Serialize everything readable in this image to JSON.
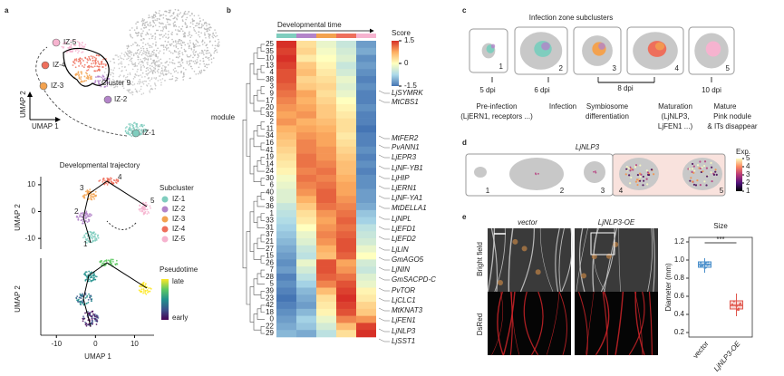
{
  "panels": {
    "a": {
      "label": "a",
      "umap": {
        "cluster_label": "Cluster 9",
        "x_axis": "UMAP 1",
        "y_axis": "UMAP 2",
        "subclusters": [
          {
            "name": "IZ-1",
            "color": "#7fcdbe"
          },
          {
            "name": "IZ-2",
            "color": "#b384c9"
          },
          {
            "name": "IZ-3",
            "color": "#f3a24f"
          },
          {
            "name": "IZ-4",
            "color": "#ee6f5c"
          },
          {
            "name": "IZ-5",
            "color": "#f6b3cf"
          }
        ]
      },
      "trajectory": {
        "title": "Developmental trajectory",
        "ylim": [
          -14,
          13
        ],
        "yticks": [
          10,
          0,
          -10
        ],
        "nodes": [
          "1",
          "2",
          "3",
          "4",
          "5"
        ],
        "legend_title": "Subcluster",
        "y_axis": "UMAP 2"
      },
      "pseudotime": {
        "xlim": [
          -14,
          15
        ],
        "xticks": [
          -10,
          0,
          10
        ],
        "x_axis": "UMAP 1",
        "y_axis": "UMAP 2",
        "legend_title": "Pseudotime",
        "high": "late",
        "low": "early"
      }
    },
    "b": {
      "label": "b",
      "time_label": "Developmental time",
      "score_title": "Score",
      "score_lim": [
        -1.5,
        1.5
      ],
      "score_ticks": [
        1.5,
        0,
        -1.5
      ],
      "module_label": "module",
      "highlight_color": "#e0564c",
      "rows": [
        {
          "module": "25",
          "values": [
            1.5,
            0.3,
            -0.2,
            -0.5,
            -1.2
          ]
        },
        {
          "module": "35",
          "values": [
            1.4,
            0.4,
            -0.1,
            -0.4,
            -1.1
          ]
        },
        {
          "module": "10",
          "values": [
            1.5,
            0.2,
            0.0,
            -0.3,
            -1.3
          ]
        },
        {
          "module": "13",
          "values": [
            1.4,
            0.5,
            0.1,
            -0.5,
            -1.2
          ]
        },
        {
          "module": "4",
          "values": [
            1.3,
            0.6,
            0.2,
            -0.4,
            -1.3
          ]
        },
        {
          "module": "38",
          "values": [
            1.3,
            0.4,
            0.3,
            -0.2,
            -1.4
          ]
        },
        {
          "module": "3",
          "values": [
            1.2,
            0.5,
            0.4,
            -0.3,
            -1.3
          ]
        },
        {
          "module": "9",
          "values": [
            1.1,
            0.8,
            0.3,
            -0.2,
            -1.4
          ]
        },
        {
          "module": "17",
          "values": [
            1.0,
            0.7,
            0.4,
            0.0,
            -1.4
          ]
        },
        {
          "module": "20",
          "values": [
            0.9,
            0.8,
            0.5,
            0.1,
            -1.3
          ]
        },
        {
          "module": "32",
          "values": [
            0.8,
            0.9,
            0.5,
            0.2,
            -1.4
          ]
        },
        {
          "module": "2",
          "values": [
            0.9,
            0.7,
            0.6,
            0.3,
            -1.4
          ]
        },
        {
          "module": "11",
          "values": [
            0.7,
            0.8,
            0.7,
            0.3,
            -1.5
          ]
        },
        {
          "module": "34",
          "values": [
            0.6,
            0.9,
            0.8,
            0.2,
            -1.4
          ]
        },
        {
          "module": "16",
          "values": [
            0.5,
            1.0,
            0.8,
            0.3,
            -1.4
          ]
        },
        {
          "module": "41",
          "values": [
            0.4,
            1.0,
            0.9,
            0.4,
            -1.3
          ]
        },
        {
          "module": "19",
          "values": [
            0.3,
            1.1,
            0.9,
            0.5,
            -1.4
          ]
        },
        {
          "module": "14",
          "values": [
            0.2,
            1.1,
            1.0,
            0.6,
            -1.3
          ]
        },
        {
          "module": "24",
          "values": [
            0.1,
            1.0,
            1.1,
            0.6,
            -1.4
          ]
        },
        {
          "module": "30",
          "values": [
            -0.1,
            1.1,
            1.0,
            0.7,
            -1.3
          ]
        },
        {
          "module": "6",
          "values": [
            -0.2,
            1.0,
            1.1,
            0.8,
            -1.3
          ]
        },
        {
          "module": "40",
          "values": [
            -0.3,
            0.9,
            1.2,
            0.8,
            -1.2
          ]
        },
        {
          "module": "8",
          "values": [
            -0.3,
            0.7,
            1.2,
            0.9,
            -1.2
          ]
        },
        {
          "module": "36",
          "values": [
            -0.5,
            0.5,
            1.1,
            1.0,
            -1.1
          ]
        },
        {
          "module": "1",
          "values": [
            -0.6,
            0.3,
            0.9,
            1.1,
            -0.9
          ]
        },
        {
          "module": "33",
          "values": [
            -0.7,
            0.2,
            0.8,
            1.2,
            -0.8
          ]
        },
        {
          "module": "31",
          "values": [
            -0.8,
            0.0,
            0.9,
            1.1,
            -0.6
          ]
        },
        {
          "module": "37",
          "values": [
            -0.9,
            -0.2,
            1.0,
            1.2,
            -0.5
          ]
        },
        {
          "module": "21",
          "values": [
            -1.0,
            -0.3,
            0.9,
            1.3,
            -0.4
          ]
        },
        {
          "module": "27",
          "values": [
            -1.1,
            -0.5,
            0.7,
            1.3,
            -0.2
          ]
        },
        {
          "module": "15",
          "values": [
            -1.2,
            -0.6,
            0.6,
            1.2,
            0.0
          ]
        },
        {
          "module": "26",
          "values": [
            -1.3,
            -0.2,
            1.3,
            0.8,
            -0.4
          ]
        },
        {
          "module": "7",
          "values": [
            -1.2,
            -0.4,
            1.3,
            0.9,
            -0.5
          ]
        },
        {
          "module": "28",
          "values": [
            -1.4,
            -0.6,
            1.2,
            1.1,
            -0.3
          ]
        },
        {
          "module": "5",
          "values": [
            -1.3,
            -0.8,
            1.0,
            1.3,
            -0.2
          ]
        },
        {
          "module": "39",
          "values": [
            -1.4,
            -1.0,
            0.6,
            1.4,
            0.1
          ]
        },
        {
          "module": "23",
          "values": [
            -1.5,
            -1.1,
            0.3,
            1.5,
            0.2
          ]
        },
        {
          "module": "42",
          "values": [
            -1.4,
            -1.2,
            0.2,
            1.4,
            0.4
          ]
        },
        {
          "module": "18",
          "values": [
            -1.3,
            -1.0,
            0.1,
            1.3,
            0.5
          ]
        },
        {
          "module": "0",
          "values": [
            -1.2,
            -0.8,
            -0.2,
            1.0,
            0.9
          ]
        },
        {
          "module": "22",
          "values": [
            -1.1,
            -0.9,
            -0.4,
            0.6,
            1.4
          ]
        },
        {
          "module": "29",
          "values": [
            -1.0,
            -1.1,
            -0.6,
            0.3,
            1.5
          ]
        }
      ],
      "genes": [
        {
          "name": "LjSYMRK",
          "highlight": false
        },
        {
          "name": "MtCBS1",
          "highlight": false
        },
        {
          "name": "MtFER2",
          "highlight": false
        },
        {
          "name": "PvANN1",
          "highlight": false
        },
        {
          "name": "LjEPR3",
          "highlight": false
        },
        {
          "name": "LjNF-YB1",
          "highlight": false
        },
        {
          "name": "LjHIP",
          "highlight": false
        },
        {
          "name": "LjERN1",
          "highlight": true
        },
        {
          "name": "LjNF-YA1",
          "highlight": false
        },
        {
          "name": "MtDELLA1",
          "highlight": false
        },
        {
          "name": "LjNPL",
          "highlight": false
        },
        {
          "name": "LjEFD1",
          "highlight": true
        },
        {
          "name": "LjEFD2",
          "highlight": false
        },
        {
          "name": "LjLIN",
          "highlight": false
        },
        {
          "name": "GmAGO5",
          "highlight": false
        },
        {
          "name": "LjNIN",
          "highlight": false
        },
        {
          "name": "GmSACPD-C",
          "highlight": false
        },
        {
          "name": "PvTOR",
          "highlight": false
        },
        {
          "name": "LjCLC1",
          "highlight": false
        },
        {
          "name": "MtKNAT3",
          "highlight": false
        },
        {
          "name": "LjFEN1",
          "highlight": false
        },
        {
          "name": "LjNLP3",
          "highlight": true
        },
        {
          "name": "LjSST1",
          "highlight": false
        }
      ]
    },
    "c": {
      "label": "c",
      "title": "Infection zone subclusters",
      "numbers": [
        "1",
        "2",
        "3",
        "4",
        "5"
      ],
      "dpi": [
        "5 dpi",
        "6 dpi",
        "8 dpi",
        "10 dpi"
      ],
      "descriptions": [
        [
          "Pre-infection",
          "(LjERN1, receptors ...)"
        ],
        [
          "Infection"
        ],
        [
          "Symbiosome",
          "differentiation"
        ],
        [
          "Maturation",
          "(LjNLP3,",
          "LjFEN1 ...)"
        ],
        [
          "Mature",
          "Pink nodule",
          "& ITs disappear"
        ]
      ]
    },
    "d": {
      "label": "d",
      "gene": "LjNLP3",
      "numbers": [
        "1",
        "2",
        "3",
        "4",
        "5"
      ],
      "exp_title": "Exp.",
      "exp_lim": [
        1,
        5
      ],
      "exp_ticks": [
        5,
        4,
        3,
        2,
        1
      ]
    },
    "e": {
      "label": "e",
      "columns": [
        "vector",
        "LjNLP3-OE"
      ],
      "rows": [
        "Bright field",
        "DsRed"
      ],
      "size_chart": {
        "title": "Size",
        "y_label": "Diameter (mm)",
        "ylim": [
          0.15,
          1.25
        ],
        "yticks": [
          0.2,
          0.4,
          0.6,
          0.8,
          {
            "value": 1,
            "label": "1.0"
          },
          1.2
        ],
        "categories": [
          "vector",
          "LjNLP3-OE"
        ],
        "colors": [
          "#4a8fcb",
          "#e0564c"
        ],
        "significance": "***",
        "boxes": [
          {
            "whisker_low": 0.86,
            "q1": 0.92,
            "median": 0.95,
            "q3": 0.98,
            "whisker_high": 1.02
          },
          {
            "whisker_low": 0.38,
            "q1": 0.46,
            "median": 0.5,
            "q3": 0.55,
            "whisker_high": 0.63
          }
        ]
      }
    }
  }
}
